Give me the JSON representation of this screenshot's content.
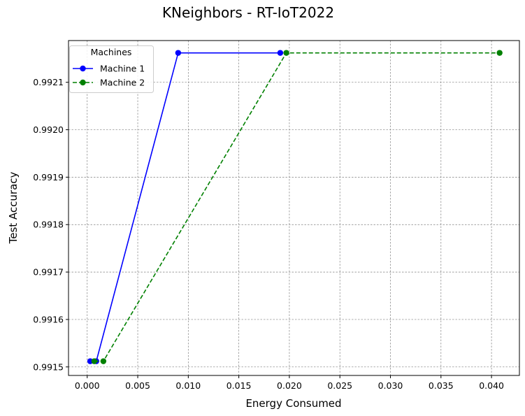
{
  "chart_data": {
    "type": "line",
    "title": "KNeighbors - RT-IoT2022",
    "xlabel": "Energy Consumed",
    "ylabel": "Test Accuracy",
    "xlim": [
      -0.00185,
      0.04276
    ],
    "ylim": [
      0.991482,
      0.992188
    ],
    "xticks": [
      0.0,
      0.005,
      0.01,
      0.015,
      0.02,
      0.025,
      0.03,
      0.035,
      0.04
    ],
    "xtick_labels": [
      "0.000",
      "0.005",
      "0.010",
      "0.015",
      "0.020",
      "0.025",
      "0.030",
      "0.035",
      "0.040"
    ],
    "yticks": [
      0.9915,
      0.9916,
      0.9917,
      0.9918,
      0.9919,
      0.992,
      0.9921
    ],
    "ytick_labels": [
      "0.9915",
      "0.9916",
      "0.9917",
      "0.9918",
      "0.9919",
      "0.9920",
      "0.9921"
    ],
    "grid": true,
    "legend": {
      "title": "Machines",
      "placement": "top-left"
    },
    "series": [
      {
        "name": "Machine 1",
        "color": "#0000ff",
        "linestyle": "solid",
        "marker": "circle",
        "x": [
          0.0003,
          0.0009,
          0.009,
          0.0191
        ],
        "y": [
          0.991512,
          0.991512,
          0.992162,
          0.992162
        ]
      },
      {
        "name": "Machine 2",
        "color": "#008000",
        "linestyle": "dashed",
        "marker": "circle",
        "x": [
          0.0007,
          0.0016,
          0.0197,
          0.0408
        ],
        "y": [
          0.991512,
          0.991512,
          0.992162,
          0.992162
        ]
      }
    ]
  }
}
